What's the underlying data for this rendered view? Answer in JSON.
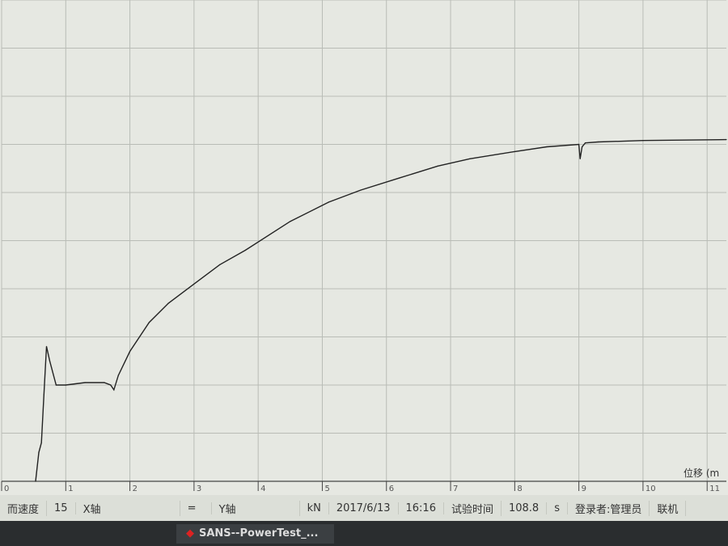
{
  "chart_data": {
    "type": "line",
    "title": "",
    "xlabel": "位移 (m",
    "ylabel": "",
    "xlim": [
      0,
      11.3
    ],
    "ylim": [
      0,
      100
    ],
    "x_ticks": [
      "0",
      "1",
      "2",
      "3",
      "4",
      "5",
      "6",
      "7",
      "8",
      "9",
      "10",
      "11"
    ],
    "grid": true,
    "line_color": "#222222",
    "series": [
      {
        "x": [
          0.53,
          0.58,
          0.62,
          0.66,
          0.7,
          0.75,
          0.85,
          1.0,
          1.3,
          1.6,
          1.7,
          1.75,
          1.82,
          2.0,
          2.3,
          2.6,
          3.0,
          3.4,
          3.8,
          4.5,
          5.1,
          5.6,
          6.2,
          6.8,
          7.3,
          8.0,
          8.5,
          9.0,
          9.02,
          9.05,
          9.1,
          9.3,
          10.0,
          11.3
        ],
        "y": [
          0,
          6,
          8,
          18,
          28,
          25,
          20,
          20,
          20.5,
          20.5,
          20,
          19,
          22,
          27,
          33,
          37,
          41,
          45,
          48,
          54,
          58,
          60.5,
          63,
          65.5,
          67,
          68.5,
          69.5,
          70,
          67,
          69.5,
          70.3,
          70.5,
          70.8,
          71
        ]
      }
    ]
  },
  "status_bar": {
    "speed_label": "而速度",
    "speed_value": "15",
    "x_axis_label": "X轴",
    "equals": "=",
    "y_axis_label": "Y轴",
    "unit": "kN",
    "date": "2017/6/13",
    "time": "16:16",
    "test_time_label": "试验时间",
    "test_time_value": "108.8",
    "test_time_unit": "s",
    "login": "登录者:管理员",
    "connection": "联机"
  },
  "taskbar": {
    "app_title": "SANS--PowerTest_..."
  }
}
